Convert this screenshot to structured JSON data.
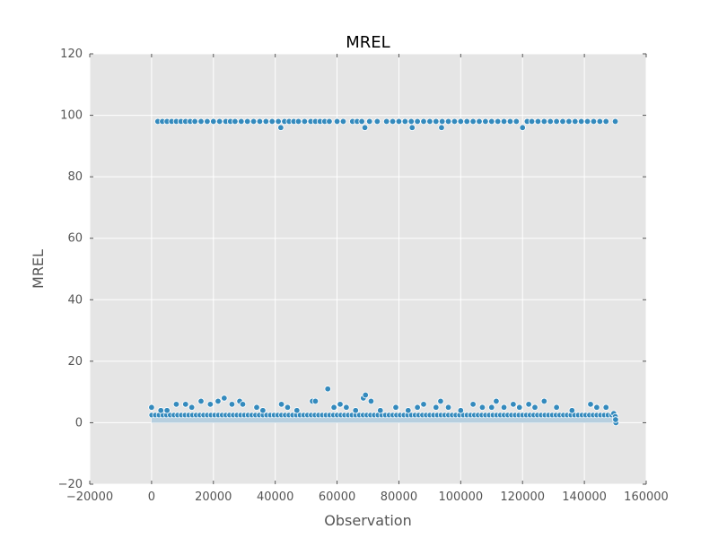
{
  "chart_data": {
    "type": "scatter",
    "title": "MREL",
    "xlabel": "Observation",
    "ylabel": "MREL",
    "xlim": [
      -20000,
      160000
    ],
    "ylim": [
      -20,
      120
    ],
    "xticks": [
      -20000,
      0,
      20000,
      40000,
      60000,
      80000,
      100000,
      120000,
      140000,
      160000
    ],
    "yticks": [
      -20,
      0,
      20,
      40,
      60,
      80,
      100,
      120
    ],
    "xtick_labels": [
      "−20000",
      "0",
      "20000",
      "40000",
      "60000",
      "80000",
      "100000",
      "120000",
      "140000",
      "160000"
    ],
    "ytick_labels": [
      "−20",
      "0",
      "20",
      "40",
      "60",
      "80",
      "100",
      "120"
    ],
    "grid": true,
    "colors": {
      "background": "#e5e5e5",
      "grid": "#ffffff",
      "marker": "#348abd",
      "dense_band": "#b7cfdf",
      "marker_edge": "#ffffff"
    },
    "series": [
      {
        "x": [
          2000,
          3500,
          5000,
          6500,
          8000,
          9500,
          11000,
          12500,
          14000,
          16000,
          18000,
          20000,
          22000,
          24000,
          25500,
          27000,
          29000,
          31000,
          33000,
          35000,
          37000,
          39000,
          41000,
          41800,
          43000,
          44500,
          46000,
          47500,
          49500,
          51500,
          53000,
          54500,
          56000,
          57500,
          60000,
          62000,
          65000,
          66500,
          68000,
          69000,
          70500,
          73000,
          76000,
          78000,
          80000,
          82000,
          84000,
          86000,
          88000,
          90000,
          92000,
          94000,
          96000,
          98000,
          100000,
          102000,
          104000,
          106000,
          108000,
          110000,
          112000,
          114000,
          116000,
          118000,
          120000,
          121500,
          123000,
          125000,
          127000,
          129000,
          131000,
          133000,
          135000,
          137000,
          139000,
          141000,
          143000,
          145000,
          147000,
          150000,
          84300,
          93800
        ],
        "y": [
          98,
          98,
          98,
          98,
          98,
          98,
          98,
          98,
          98,
          98,
          98,
          98,
          98,
          98,
          98,
          98,
          98,
          98,
          98,
          98,
          98,
          98,
          98,
          96,
          98,
          98,
          98,
          98,
          98,
          98,
          98,
          98,
          98,
          98,
          98,
          98,
          98,
          98,
          98,
          96,
          98,
          98,
          98,
          98,
          98,
          98,
          98,
          98,
          98,
          98,
          98,
          98,
          98,
          98,
          98,
          98,
          98,
          98,
          98,
          98,
          98,
          98,
          98,
          98,
          96,
          98,
          98,
          98,
          98,
          98,
          98,
          98,
          98,
          98,
          98,
          98,
          98,
          98,
          98,
          98,
          96,
          96
        ]
      },
      {
        "x": [
          0,
          3000,
          5000,
          8000,
          11000,
          13000,
          16000,
          19000,
          21500,
          23500,
          26000,
          28500,
          29500,
          34000,
          36000,
          42000,
          44000,
          47000,
          52000,
          53000,
          57000,
          59000,
          61000,
          63000,
          66000,
          68500,
          69200,
          71000,
          74000,
          79000,
          83000,
          86000,
          88000,
          92000,
          93500,
          96000,
          100000,
          104000,
          107000,
          110000,
          111500,
          114000,
          117000,
          119000,
          122000,
          124000,
          127000,
          131000,
          136000,
          142000,
          144000,
          147000,
          149500,
          150000,
          150200,
          150100
        ],
        "y": [
          5,
          4,
          4,
          6,
          6,
          5,
          7,
          6,
          7,
          8,
          6,
          7,
          6,
          5,
          4,
          6,
          5,
          4,
          7,
          7,
          11,
          5,
          6,
          5,
          4,
          8,
          9,
          7,
          4,
          5,
          4,
          5,
          6,
          5,
          7,
          5,
          4,
          6,
          5,
          5,
          7,
          5,
          6,
          5,
          6,
          5,
          7,
          5,
          4,
          6,
          5,
          5,
          3,
          2,
          0,
          1
        ]
      }
    ],
    "dense_band": {
      "y_from": 0,
      "y_to": 3,
      "x_from": 0,
      "x_to": 150000
    }
  }
}
